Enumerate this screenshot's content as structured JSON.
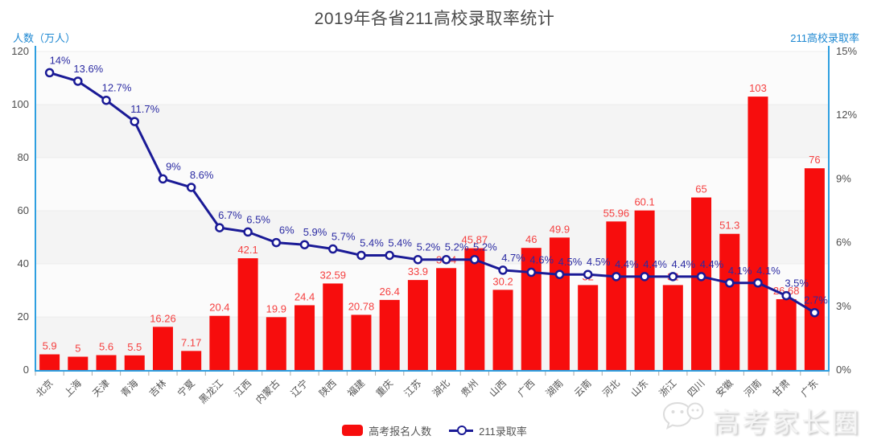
{
  "title": "2019年各省211高校录取率统计",
  "left_axis": {
    "title": "人数（万人）",
    "ticks": [
      "120",
      "100",
      "80",
      "60",
      "40",
      "20",
      "0"
    ],
    "max": 120
  },
  "right_axis": {
    "title": "211高校录取率",
    "ticks": [
      "15%",
      "12%",
      "9%",
      "6%",
      "3%",
      "0%"
    ],
    "max": 15
  },
  "legend": {
    "bar_label": "高考报名人数",
    "line_label": "211录取率"
  },
  "watermark": {
    "icon": "wechat-icon",
    "text": "高考家长圈"
  },
  "colors": {
    "bar": "#f70d0d",
    "bar_label": "#f54040",
    "line": "#1a1a96",
    "rate_label": "#2b2ba3",
    "axis_line": "#2e9fe0",
    "axis_title": "#1e88d2",
    "tick_label": "#4d4d4d",
    "x_label": "#555555",
    "grid_line": "#ececec",
    "stripe_a": "#f4f4f4",
    "stripe_b": "#fbfbfb"
  },
  "chart_data": {
    "type": "bar",
    "note": "combo chart: red bars on left axis (万人), navy line with hollow markers on right axis (%)",
    "categories": [
      "北京",
      "上海",
      "天津",
      "青海",
      "吉林",
      "宁夏",
      "黑龙江",
      "江西",
      "内蒙古",
      "辽宁",
      "陕西",
      "福建",
      "重庆",
      "江苏",
      "湖北",
      "贵州",
      "山西",
      "广西",
      "湖南",
      "云南",
      "河北",
      "山东",
      "浙江",
      "四川",
      "安徽",
      "河南",
      "甘肃",
      "广东"
    ],
    "series": [
      {
        "name": "高考报名人数",
        "type": "bar",
        "axis": "left",
        "values": [
          5.9,
          5,
          5.6,
          5.5,
          16.26,
          7.17,
          20.4,
          42.1,
          19.9,
          24.4,
          32.59,
          20.78,
          26.4,
          33.9,
          38.4,
          45.87,
          30.2,
          46,
          49.9,
          32,
          55.96,
          60.1,
          32,
          65,
          51.3,
          103,
          26.68,
          76
        ],
        "labels": [
          "5.9",
          "5",
          "5.6",
          "5.5",
          "16.26",
          "7.17",
          "20.4",
          "42.1",
          "19.9",
          "24.4",
          "32.59",
          "20.78",
          "26.4",
          "33.9",
          "38.4",
          "45.87",
          "30.2",
          "46",
          "49.9",
          "32",
          "55.96",
          "60.1",
          "32",
          "65",
          "51.3",
          "103",
          "26.68",
          "76"
        ]
      },
      {
        "name": "211录取率",
        "type": "line",
        "axis": "right",
        "values": [
          14,
          13.6,
          12.7,
          11.7,
          9,
          8.6,
          6.7,
          6.5,
          6,
          5.9,
          5.7,
          5.4,
          5.4,
          5.2,
          5.2,
          5.2,
          4.7,
          4.6,
          4.5,
          4.5,
          4.4,
          4.4,
          4.4,
          4.4,
          4.1,
          4.1,
          3.5,
          2.7
        ],
        "labels": [
          "14%",
          "13.6%",
          "12.7%",
          "11.7%",
          "9%",
          "8.6%",
          "6.7%",
          "6.5%",
          "6%",
          "5.9%",
          "5.7%",
          "5.4%",
          "5.4%",
          "5.2%",
          "5.2%",
          "5.2%",
          "4.7%",
          "4.6%",
          "4.5%",
          "4.5%",
          "4.4%",
          "4.4%",
          "4.4%",
          "4.4%",
          "4.1%",
          "4.1%",
          "3.5%",
          "2.7%"
        ]
      }
    ],
    "title": "2019年各省211高校录取率统计",
    "xlabel": "",
    "ylabel_left": "人数（万人）",
    "ylabel_right": "211高校录取率",
    "ylim_left": [
      0,
      120
    ],
    "ylim_right": [
      0,
      15
    ],
    "grid": true,
    "legend_position": "bottom"
  }
}
